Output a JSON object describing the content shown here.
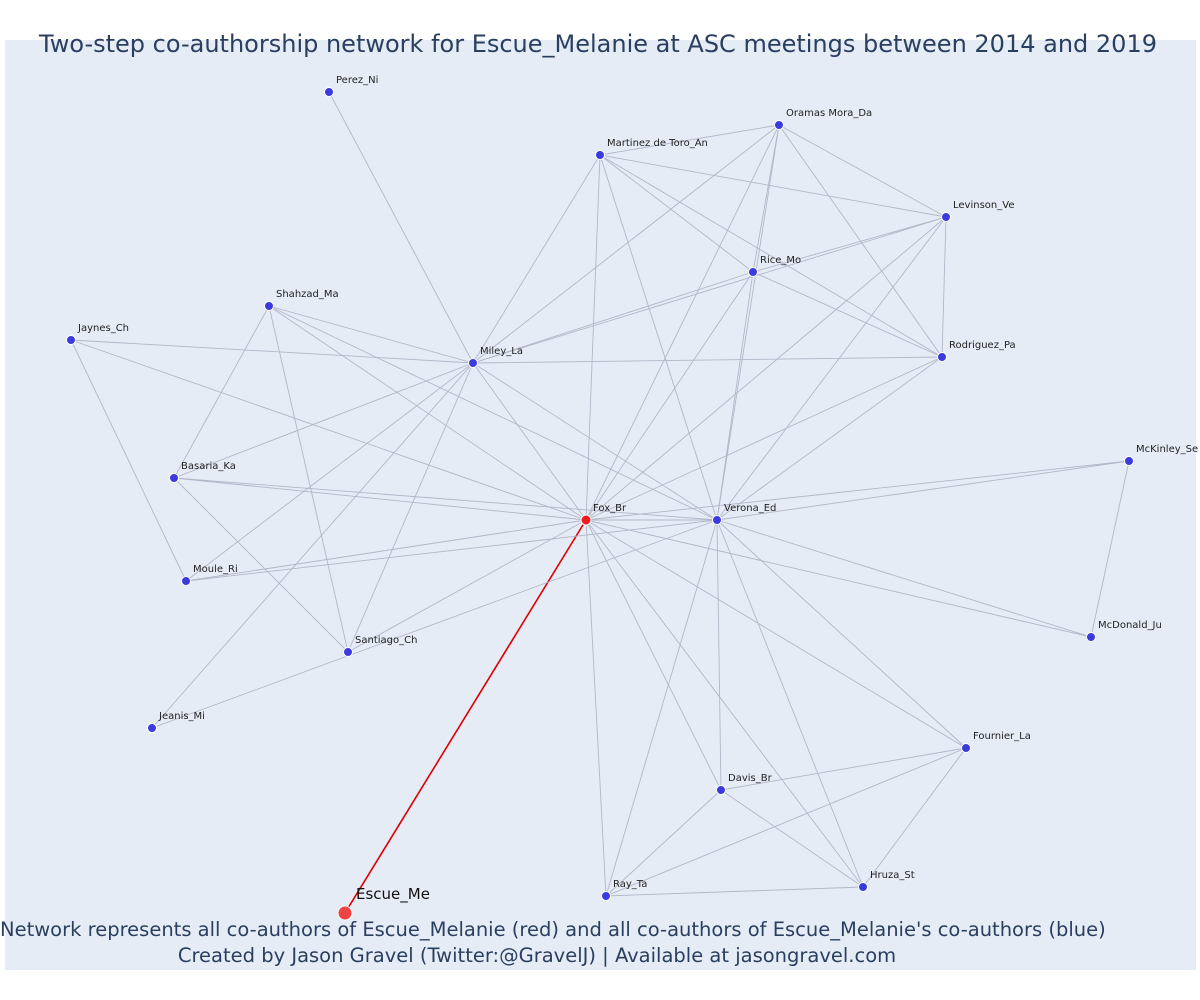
{
  "title": "Two-step co-authorship network for Escue_Melanie at ASC meetings between 2014 and 2019",
  "caption_line1": "Network represents all co-authors of Escue_Melanie (red) and all co-authors of Escue_Melanie's co-authors (blue)",
  "caption_line2": "Created by Jason Gravel (Twitter:@GravelJ) | Available at jasongravel.com",
  "colors": {
    "ego": "#ef4444",
    "coauthor": "#ef1e1e",
    "second_step": "#3b3bdd",
    "edge": "#b3b6c7",
    "ego_edge": "#dd0000",
    "background": "#e5ecf6"
  },
  "nodes": [
    {
      "id": "Escue_Me",
      "group": "ego"
    },
    {
      "id": "Fox_Br",
      "group": "coauthor"
    },
    {
      "id": "Verona_Ed",
      "group": "second"
    },
    {
      "id": "Miley_La",
      "group": "second"
    },
    {
      "id": "Rice_Mo",
      "group": "second"
    },
    {
      "id": "Perez_Ni",
      "group": "second"
    },
    {
      "id": "Oramas Mora_Da",
      "group": "second"
    },
    {
      "id": "Martinez de Toro_An",
      "group": "second"
    },
    {
      "id": "Levinson_Ve",
      "group": "second"
    },
    {
      "id": "Rodriguez_Pa",
      "group": "second"
    },
    {
      "id": "Shahzad_Ma",
      "group": "second"
    },
    {
      "id": "Jaynes_Ch",
      "group": "second"
    },
    {
      "id": "Basaria_Ka",
      "group": "second"
    },
    {
      "id": "Moule_Ri",
      "group": "second"
    },
    {
      "id": "Santiago_Ch",
      "group": "second"
    },
    {
      "id": "Jeanis_Mi",
      "group": "second"
    },
    {
      "id": "McKinley_Se",
      "group": "second"
    },
    {
      "id": "McDonald_Ju",
      "group": "second"
    },
    {
      "id": "Fournier_La",
      "group": "second"
    },
    {
      "id": "Davis_Br",
      "group": "second"
    },
    {
      "id": "Ray_Ta",
      "group": "second"
    },
    {
      "id": "Hruza_St",
      "group": "second"
    }
  ],
  "edges": [
    [
      "Escue_Me",
      "Fox_Br"
    ],
    [
      "Fox_Br",
      "Verona_Ed"
    ],
    [
      "Fox_Br",
      "Miley_La"
    ],
    [
      "Fox_Br",
      "Rice_Mo"
    ],
    [
      "Fox_Br",
      "Oramas Mora_Da"
    ],
    [
      "Fox_Br",
      "Martinez de Toro_An"
    ],
    [
      "Fox_Br",
      "Levinson_Ve"
    ],
    [
      "Fox_Br",
      "Rodriguez_Pa"
    ],
    [
      "Fox_Br",
      "Shahzad_Ma"
    ],
    [
      "Fox_Br",
      "Jaynes_Ch"
    ],
    [
      "Fox_Br",
      "Basaria_Ka"
    ],
    [
      "Fox_Br",
      "Moule_Ri"
    ],
    [
      "Fox_Br",
      "Santiago_Ch"
    ],
    [
      "Fox_Br",
      "McKinley_Se"
    ],
    [
      "Fox_Br",
      "McDonald_Ju"
    ],
    [
      "Fox_Br",
      "Fournier_La"
    ],
    [
      "Fox_Br",
      "Davis_Br"
    ],
    [
      "Fox_Br",
      "Ray_Ta"
    ],
    [
      "Fox_Br",
      "Hruza_St"
    ],
    [
      "Verona_Ed",
      "Miley_La"
    ],
    [
      "Verona_Ed",
      "Rice_Mo"
    ],
    [
      "Verona_Ed",
      "Oramas Mora_Da"
    ],
    [
      "Verona_Ed",
      "Martinez de Toro_An"
    ],
    [
      "Verona_Ed",
      "Levinson_Ve"
    ],
    [
      "Verona_Ed",
      "Rodriguez_Pa"
    ],
    [
      "Verona_Ed",
      "Shahzad_Ma"
    ],
    [
      "Verona_Ed",
      "Basaria_Ka"
    ],
    [
      "Verona_Ed",
      "Moule_Ri"
    ],
    [
      "Verona_Ed",
      "Jeanis_Mi"
    ],
    [
      "Verona_Ed",
      "McKinley_Se"
    ],
    [
      "Verona_Ed",
      "McDonald_Ju"
    ],
    [
      "Verona_Ed",
      "Fournier_La"
    ],
    [
      "Verona_Ed",
      "Davis_Br"
    ],
    [
      "Verona_Ed",
      "Ray_Ta"
    ],
    [
      "Verona_Ed",
      "Hruza_St"
    ],
    [
      "Miley_La",
      "Perez_Ni"
    ],
    [
      "Miley_La",
      "Rice_Mo"
    ],
    [
      "Miley_La",
      "Oramas Mora_Da"
    ],
    [
      "Miley_La",
      "Martinez de Toro_An"
    ],
    [
      "Miley_La",
      "Levinson_Ve"
    ],
    [
      "Miley_La",
      "Rodriguez_Pa"
    ],
    [
      "Miley_La",
      "Shahzad_Ma"
    ],
    [
      "Miley_La",
      "Jaynes_Ch"
    ],
    [
      "Miley_La",
      "Basaria_Ka"
    ],
    [
      "Miley_La",
      "Moule_Ri"
    ],
    [
      "Miley_La",
      "Santiago_Ch"
    ],
    [
      "Miley_La",
      "Jeanis_Mi"
    ],
    [
      "Rice_Mo",
      "Martinez de Toro_An"
    ],
    [
      "Rice_Mo",
      "Oramas Mora_Da"
    ],
    [
      "Rice_Mo",
      "Levinson_Ve"
    ],
    [
      "Rice_Mo",
      "Rodriguez_Pa"
    ],
    [
      "Oramas Mora_Da",
      "Martinez de Toro_An"
    ],
    [
      "Oramas Mora_Da",
      "Levinson_Ve"
    ],
    [
      "Oramas Mora_Da",
      "Rodriguez_Pa"
    ],
    [
      "Martinez de Toro_An",
      "Levinson_Ve"
    ],
    [
      "Martinez de Toro_An",
      "Rodriguez_Pa"
    ],
    [
      "Levinson_Ve",
      "Rodriguez_Pa"
    ],
    [
      "Shahzad_Ma",
      "Basaria_Ka"
    ],
    [
      "Shahzad_Ma",
      "Santiago_Ch"
    ],
    [
      "Jaynes_Ch",
      "Moule_Ri"
    ],
    [
      "Basaria_Ka",
      "Santiago_Ch"
    ],
    [
      "McKinley_Se",
      "McDonald_Ju"
    ],
    [
      "Fournier_La",
      "Davis_Br"
    ],
    [
      "Fournier_La",
      "Ray_Ta"
    ],
    [
      "Fournier_La",
      "Hruza_St"
    ],
    [
      "Davis_Br",
      "Ray_Ta"
    ],
    [
      "Davis_Br",
      "Hruza_St"
    ],
    [
      "Ray_Ta",
      "Hruza_St"
    ]
  ]
}
